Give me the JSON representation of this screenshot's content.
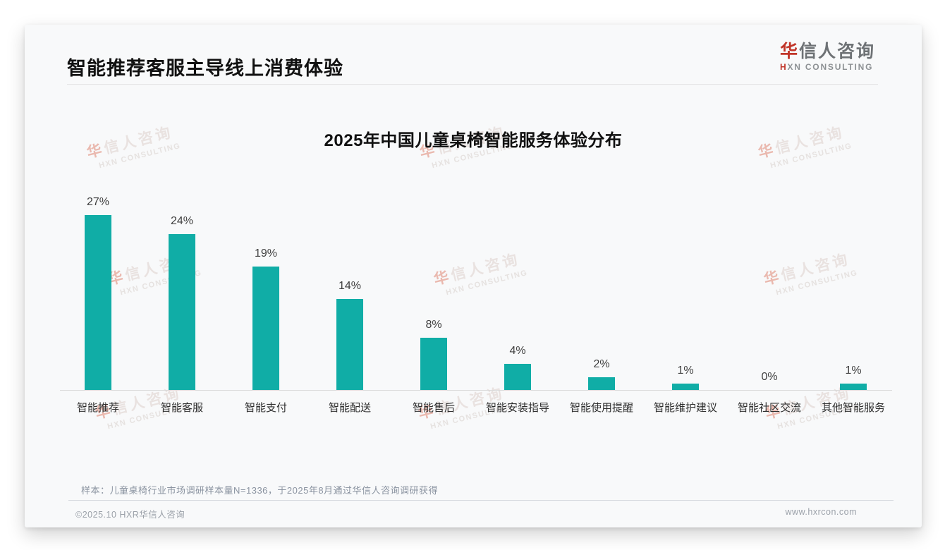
{
  "page": {
    "header": {
      "title": "智能推荐客服主导线上消费体验",
      "logo": {
        "cn_first": "华",
        "cn_rest": "信人咨询",
        "en_first": "H",
        "en_rest": "XN CONSULTING"
      }
    },
    "footnote": "样本：儿童桌椅行业市场调研样本量N=1336，于2025年8月通过华信人咨询调研获得",
    "footer": {
      "left": "©2025.10 HXR华信人咨询",
      "right": "www.hxrcon.com"
    }
  },
  "watermark": {
    "line1_first": "华",
    "line1_rest": "信人咨询",
    "line2": "HXN CONSULTING"
  },
  "colors": {
    "brand_red": "#c13529",
    "bar_teal": "#10ada6",
    "card_bg": "#f8f9fa"
  },
  "chart_data": {
    "type": "bar",
    "title": "2025年中国儿童桌椅智能服务体验分布",
    "categories": [
      "智能推荐",
      "智能客服",
      "智能支付",
      "智能配送",
      "智能售后",
      "智能安装指导",
      "智能使用提醒",
      "智能维护建议",
      "智能社区交流",
      "其他智能服务"
    ],
    "values": [
      27,
      24,
      19,
      14,
      8,
      4,
      2,
      1,
      0,
      1
    ],
    "value_labels": [
      "27%",
      "24%",
      "19%",
      "14%",
      "8%",
      "4%",
      "2%",
      "1%",
      "0%",
      "1%"
    ],
    "bar_color": "#10ada6",
    "xlabel": "",
    "ylabel": "",
    "ylim": [
      0,
      30
    ],
    "grid": false,
    "legend": false
  }
}
